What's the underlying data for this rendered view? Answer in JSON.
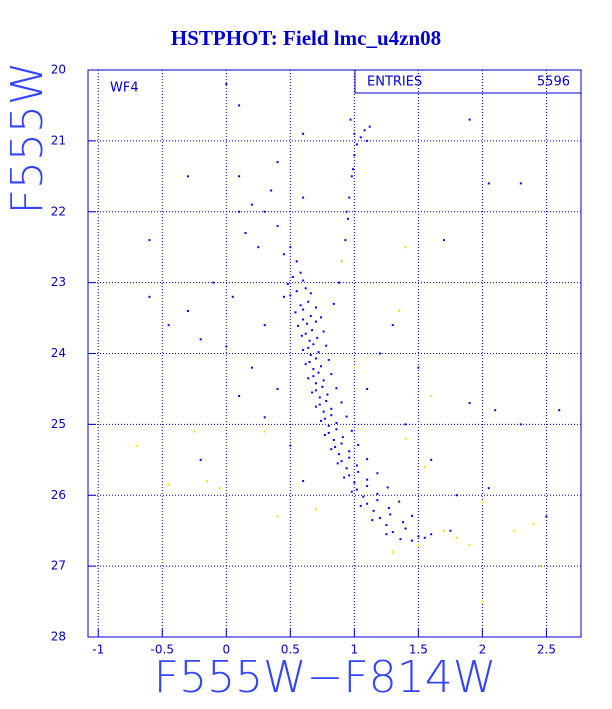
{
  "chart_data": {
    "type": "scatter",
    "title": "HSTPHOT: Field lmc_u4zn08",
    "x_label": "F555W−F814W",
    "y_label": "F555W",
    "annotation": "WF4",
    "stats": {
      "label": "ENTRIES",
      "value": 5596
    },
    "xlim": [
      -1.08,
      2.77
    ],
    "ylim": [
      20,
      28
    ],
    "y_inverted": true,
    "xticks": [
      -1,
      -0.5,
      0,
      0.5,
      1,
      1.5,
      2,
      2.5
    ],
    "yticks": [
      20,
      21,
      22,
      23,
      24,
      25,
      26,
      27,
      28
    ],
    "grid": true,
    "series": [
      {
        "color": "#0000ff",
        "x": [
          0.52,
          0.58,
          0.6,
          0.48,
          0.55,
          0.62,
          0.5,
          0.66,
          0.58,
          0.64,
          0.6,
          0.7,
          0.54,
          0.6,
          0.66,
          0.63,
          0.7,
          0.56,
          0.74,
          0.62,
          0.67,
          0.71,
          0.59,
          0.65,
          0.76,
          0.64,
          0.68,
          0.72,
          0.6,
          0.66,
          0.78,
          0.65,
          0.7,
          0.74,
          0.62,
          0.68,
          0.8,
          0.68,
          0.72,
          0.76,
          0.64,
          0.7,
          0.82,
          0.7,
          0.75,
          0.79,
          0.67,
          0.73,
          0.86,
          0.73,
          0.78,
          0.82,
          0.7,
          0.76,
          0.9,
          0.77,
          0.82,
          0.86,
          0.74,
          0.8,
          0.94,
          0.8,
          0.86,
          0.91,
          0.77,
          0.84,
          0.98,
          0.85,
          0.9,
          0.96,
          0.82,
          0.88,
          1.03,
          0.9,
          0.96,
          1.02,
          0.87,
          0.94,
          1.1,
          0.96,
          1.03,
          1.1,
          0.92,
          1.0,
          1.18,
          1.02,
          1.1,
          1.18,
          0.98,
          1.07,
          1.26,
          1.1,
          1.18,
          1.27,
          1.05,
          1.15,
          1.35,
          1.2,
          1.28,
          1.38,
          1.14,
          1.25,
          1.45,
          1.3,
          1.4,
          1.5,
          1.25,
          1.36,
          1.45,
          1.55,
          1.6,
          1.0,
          1.05,
          1.02,
          1.08,
          1.12,
          1.0,
          0.98,
          0.96,
          0.95,
          0.93,
          0.9,
          0.88,
          0.84,
          1.1,
          0.97,
          0.99,
          0.94,
          0.2,
          0.3,
          0.15,
          0.35,
          0.4,
          0.25,
          0.1,
          0.45,
          0.5,
          0.55,
          0.05,
          -0.1,
          -0.3,
          -0.45,
          0.0,
          0.2,
          0.3,
          0.4,
          -0.2,
          0.1,
          0.45,
          -0.6,
          -0.6,
          0.0,
          0.1,
          -0.3,
          0.4,
          2.3,
          2.05,
          1.7,
          1.3,
          1.5,
          1.9,
          2.1,
          2.6,
          2.3,
          2.5,
          2.05,
          1.75,
          1.2,
          1.1,
          1.4,
          1.6,
          1.8,
          0.5,
          0.6,
          0.3,
          -0.2,
          0.6,
          1.9,
          0.1,
          0.6
        ],
        "values": [
          22.92,
          22.86,
          22.97,
          23.02,
          23.12,
          23.08,
          23.18,
          23.15,
          23.32,
          23.27,
          23.38,
          23.35,
          23.42,
          23.52,
          23.47,
          23.58,
          23.55,
          23.61,
          23.49,
          23.72,
          23.67,
          23.78,
          23.75,
          23.82,
          23.69,
          23.92,
          23.87,
          23.98,
          23.95,
          24.02,
          23.89,
          24.12,
          24.07,
          24.18,
          24.15,
          24.22,
          24.09,
          24.32,
          24.27,
          24.38,
          24.35,
          24.42,
          24.29,
          24.52,
          24.47,
          24.58,
          24.55,
          24.62,
          24.49,
          24.72,
          24.67,
          24.78,
          24.75,
          24.82,
          24.69,
          24.92,
          24.87,
          24.98,
          24.95,
          25.02,
          24.89,
          25.12,
          25.07,
          25.18,
          25.15,
          25.22,
          25.09,
          25.32,
          25.27,
          25.38,
          25.35,
          25.42,
          25.29,
          25.52,
          25.47,
          25.58,
          25.55,
          25.62,
          25.49,
          25.72,
          25.67,
          25.78,
          25.75,
          25.82,
          25.69,
          25.92,
          25.87,
          25.98,
          25.95,
          26.02,
          25.89,
          26.12,
          26.07,
          26.18,
          26.15,
          26.22,
          26.09,
          26.32,
          26.27,
          26.38,
          26.35,
          26.42,
          26.29,
          26.52,
          26.47,
          26.58,
          26.55,
          26.62,
          26.64,
          26.6,
          26.55,
          20.9,
          20.95,
          21.05,
          20.85,
          20.8,
          21.2,
          21.5,
          21.8,
          22.1,
          22.4,
          22.7,
          23.0,
          23.3,
          21.0,
          20.7,
          21.4,
          22.0,
          21.9,
          22.0,
          22.3,
          21.7,
          22.2,
          22.5,
          22.0,
          22.6,
          22.5,
          22.7,
          23.2,
          23.0,
          23.4,
          23.6,
          23.9,
          24.2,
          23.6,
          24.5,
          23.8,
          24.6,
          23.2,
          22.4,
          23.2,
          20.2,
          20.5,
          21.5,
          21.3,
          21.6,
          21.6,
          22.4,
          23.6,
          24.2,
          24.7,
          24.8,
          24.8,
          25.0,
          26.3,
          25.9,
          26.5,
          24.0,
          24.5,
          25.0,
          25.5,
          26.0,
          25.3,
          25.8,
          24.9,
          25.5,
          20.9,
          20.7,
          21.5,
          21.8
        ]
      },
      {
        "color": "#ffdd00",
        "x": [
          -0.7,
          -0.45,
          -0.15,
          -0.05,
          0.3,
          1.35,
          1.6,
          1.4,
          1.55,
          1.7,
          1.8,
          1.9,
          2.0,
          2.25,
          2.4,
          1.3,
          1.5,
          0.4,
          0.7,
          2.45,
          2.0,
          1.4,
          0.9,
          1.0,
          -0.25
        ],
        "values": [
          25.3,
          25.85,
          25.8,
          25.9,
          25.1,
          23.4,
          24.6,
          25.2,
          25.6,
          26.5,
          26.6,
          26.7,
          26.1,
          26.5,
          26.4,
          26.8,
          26.7,
          26.3,
          26.2,
          27.0,
          27.5,
          22.5,
          22.7,
          24.2,
          25.1
        ]
      }
    ]
  }
}
